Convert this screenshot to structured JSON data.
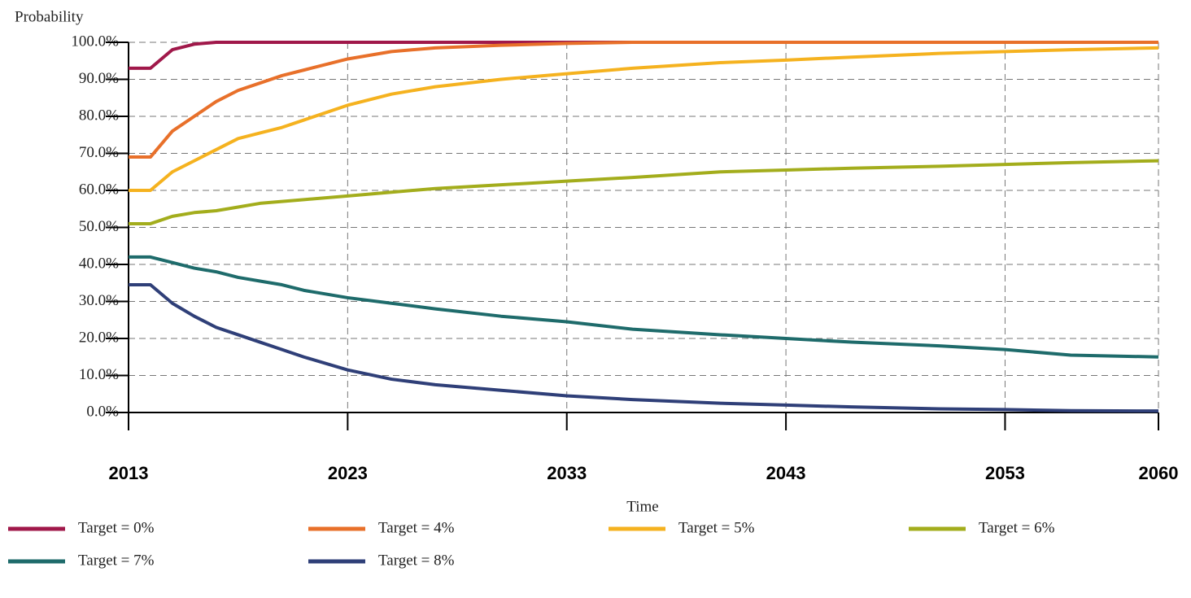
{
  "chart_data": {
    "type": "line",
    "ylabel": "Probability",
    "xlabel": "Time",
    "x": [
      2013,
      2014,
      2015,
      2016,
      2017,
      2018,
      2019,
      2020,
      2021,
      2023,
      2025,
      2027,
      2030,
      2033,
      2036,
      2040,
      2043,
      2046,
      2050,
      2053,
      2056,
      2060
    ],
    "series": [
      {
        "name": "Target = 0%",
        "color": "#a0184a",
        "values": [
          93,
          93,
          98,
          99.5,
          100,
          100,
          100,
          100,
          100,
          100,
          100,
          100,
          100,
          100,
          100,
          100,
          100,
          100,
          100,
          100,
          100,
          100
        ]
      },
      {
        "name": "Target = 4%",
        "color": "#e8702a",
        "values": [
          69,
          69,
          76,
          80,
          84,
          87,
          89,
          91,
          92.5,
          95.5,
          97.5,
          98.5,
          99.2,
          99.7,
          100,
          100,
          100,
          100,
          100,
          100,
          100,
          100
        ]
      },
      {
        "name": "Target = 5%",
        "color": "#f5b21f",
        "values": [
          60,
          60,
          65,
          68,
          71,
          74,
          75.5,
          77,
          79,
          83,
          86,
          88,
          90,
          91.5,
          93,
          94.5,
          95.2,
          96,
          97,
          97.5,
          98,
          98.5
        ]
      },
      {
        "name": "Target = 6%",
        "color": "#a3ad1c",
        "values": [
          51,
          51,
          53,
          54,
          54.5,
          55.5,
          56.5,
          57,
          57.5,
          58.5,
          59.5,
          60.5,
          61.5,
          62.5,
          63.5,
          65,
          65.5,
          66,
          66.5,
          67,
          67.5,
          68
        ]
      },
      {
        "name": "Target = 7%",
        "color": "#1e6b6b",
        "values": [
          42,
          42,
          40.5,
          39,
          38,
          36.5,
          35.5,
          34.5,
          33,
          31,
          29.5,
          28,
          26,
          24.5,
          22.5,
          21,
          20,
          19,
          18,
          17,
          15.5,
          15
        ]
      },
      {
        "name": "Target = 8%",
        "color": "#2f3f78",
        "values": [
          34.5,
          34.5,
          29.5,
          26,
          23,
          21,
          19,
          17,
          15,
          11.5,
          9,
          7.5,
          6,
          4.5,
          3.5,
          2.5,
          2,
          1.5,
          1,
          0.8,
          0.5,
          0.4
        ]
      }
    ],
    "xlim": [
      2013,
      2060
    ],
    "xticks": [
      2013,
      2023,
      2033,
      2043,
      2053,
      2060
    ],
    "ylim": [
      0,
      100
    ],
    "yticks": [
      {
        "value": 0,
        "label": "0.0%"
      },
      {
        "value": 10,
        "label": "10.0%"
      },
      {
        "value": 20,
        "label": "20.0%"
      },
      {
        "value": 30,
        "label": "30.0%"
      },
      {
        "value": 40,
        "label": "40.0%"
      },
      {
        "value": 50,
        "label": "50.0%"
      },
      {
        "value": 60,
        "label": "60.0%"
      },
      {
        "value": 70,
        "label": "70.0%"
      },
      {
        "value": 80,
        "label": "80.0%"
      },
      {
        "value": 90,
        "label": "90.0%"
      },
      {
        "value": 100,
        "label": "100.0%"
      }
    ],
    "grid": true
  }
}
